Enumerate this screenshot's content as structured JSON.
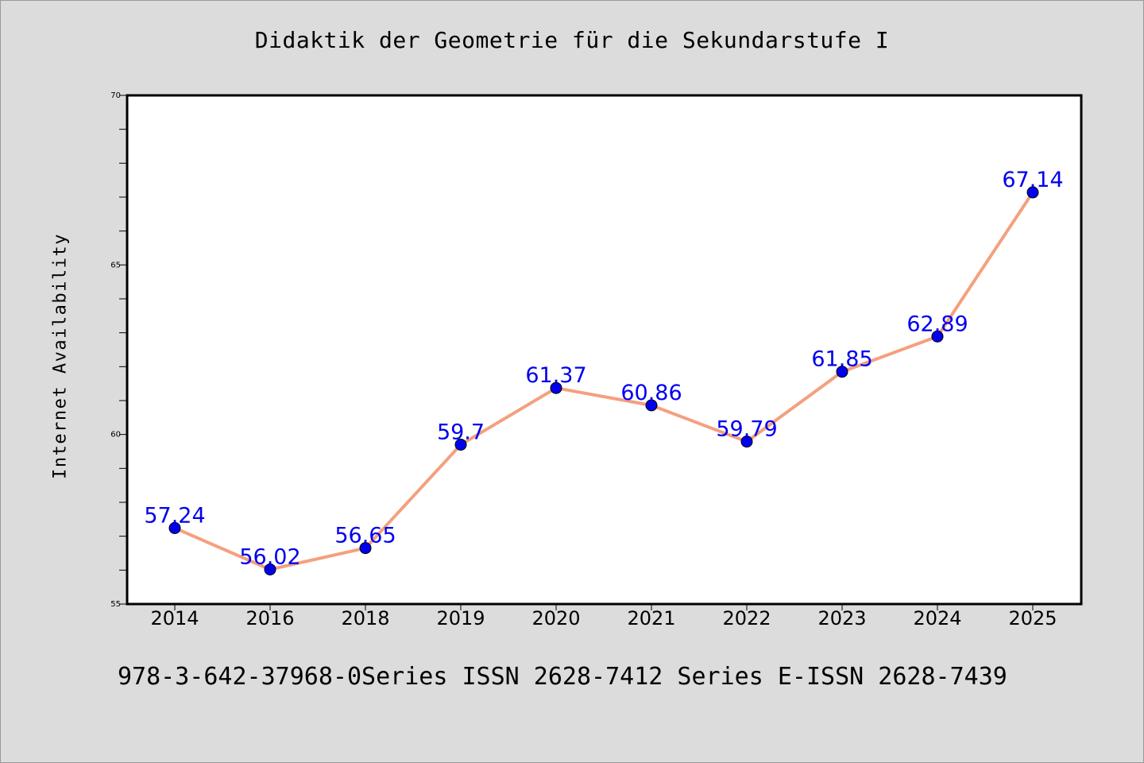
{
  "chart_data": {
    "type": "line",
    "title": "Didaktik der Geometrie für die Sekundarstufe I",
    "ylabel": "Internet Availability",
    "xlabel": "",
    "categories": [
      "2014",
      "2016",
      "2018",
      "2019",
      "2020",
      "2021",
      "2022",
      "2023",
      "2024",
      "2025"
    ],
    "values": [
      57.24,
      56.02,
      56.65,
      59.7,
      61.37,
      60.86,
      59.79,
      61.85,
      62.89,
      67.14
    ],
    "value_labels": [
      "57.24",
      "56.02",
      "56.65",
      "59.7",
      "61.37",
      "60.86",
      "59.79",
      "61.85",
      "62.89",
      "67.14"
    ],
    "ylim": [
      55,
      70
    ],
    "yticks": [
      "55",
      "60",
      "65",
      "70"
    ],
    "y_minor_step": 1,
    "line_color": "#f4a07f",
    "marker_color": "#0000ee",
    "label_color": "#0000ee",
    "grid": false,
    "legend": "none"
  },
  "footer": "978-3-642-37968-0Series ISSN 2628-7412 Series E-ISSN 2628-7439",
  "colors": {
    "background": "#dcdcdc",
    "plot_background": "#ffffff",
    "axis": "#000000"
  }
}
